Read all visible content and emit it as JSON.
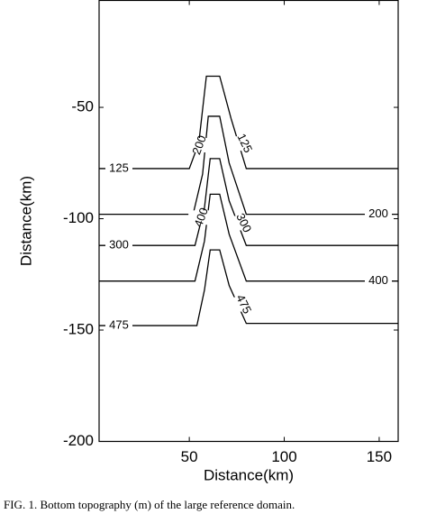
{
  "chart_data": {
    "type": "contour",
    "x_label": "Distance(km)",
    "y_label": "Distance(km)",
    "xlim": [
      2.5,
      160
    ],
    "ylim": [
      -200,
      -2
    ],
    "xticks": [
      50,
      100,
      150
    ],
    "yticks": [
      -50,
      -100,
      -150,
      -200
    ],
    "color": "#000000",
    "series": [
      {
        "name": "125",
        "x": [
          2.5,
          50,
          55,
          59,
          66,
          72,
          80,
          160
        ],
        "values": [
          -77.5,
          -77.5,
          -66,
          -36,
          -36,
          -55,
          -77.5,
          -77.5
        ]
      },
      {
        "name": "200",
        "x": [
          2.5,
          52,
          57,
          60,
          66,
          71,
          80,
          160
        ],
        "values": [
          -98,
          -98,
          -80,
          -54,
          -54,
          -75,
          -98,
          -98
        ]
      },
      {
        "name": "300",
        "x": [
          2.5,
          53,
          58,
          61,
          66,
          71,
          80,
          160
        ],
        "values": [
          -112,
          -112,
          -95,
          -73,
          -73,
          -92,
          -112,
          -112
        ]
      },
      {
        "name": "400",
        "x": [
          2.5,
          53,
          58,
          61,
          66,
          71,
          80,
          160
        ],
        "values": [
          -128,
          -128,
          -110,
          -89,
          -89,
          -107,
          -128,
          -128
        ]
      },
      {
        "name": "475",
        "x": [
          2.5,
          54,
          58,
          61,
          66,
          71,
          80,
          160
        ],
        "values": [
          -148,
          -148,
          -132,
          -114,
          -114,
          -130,
          -147,
          -147
        ]
      }
    ],
    "caption": "FIG. 1. Bottom topography (m) of the large reference domain."
  }
}
